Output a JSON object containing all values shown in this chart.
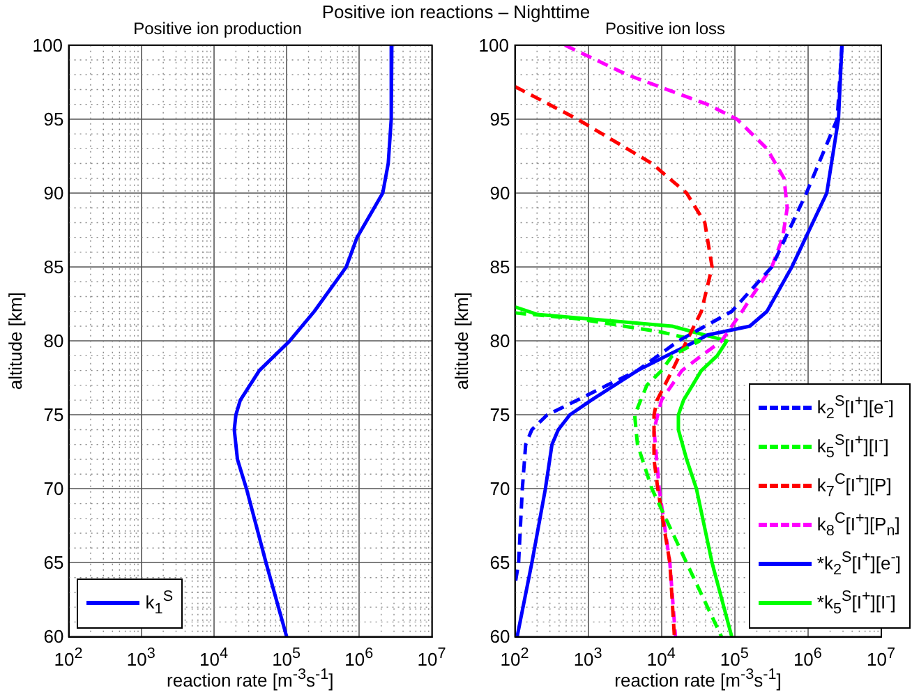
{
  "chart_data": [
    {
      "type": "line",
      "title": "Positive ion production",
      "xlabel": "reaction rate [m$^{-3}$s$^{-1}$]",
      "ylabel": "altitude [km]",
      "log": "x",
      "grid": true,
      "legend": "bottom left",
      "annotations": [
        "Positive ion reactions – Nighttime"
      ],
      "xlim": [
        100,
        10000000
      ],
      "xticks": [
        {
          "value": 100,
          "label": "10$^{2}$"
        },
        {
          "value": 1000,
          "label": "10$^{3}$"
        },
        {
          "value": 10000,
          "label": "10$^{4}$"
        },
        {
          "value": 100000,
          "label": "10$^{5}$"
        },
        {
          "value": 1000000,
          "label": "10$^{6}$"
        },
        {
          "value": 10000000,
          "label": "10$^{7}$"
        }
      ],
      "ylim": [
        60,
        100
      ],
      "yticks": [
        60,
        65,
        70,
        75,
        80,
        85,
        90,
        95,
        100
      ],
      "series": [
        {
          "name": "k$_{1}$$^{S}$",
          "color": "#0000ff",
          "line_style": "solid",
          "x": [
            2800000,
            2750000,
            2500000,
            2100000,
            930000,
            660000,
            240000,
            110000,
            42000,
            23000,
            20000,
            19000,
            21000,
            28000,
            52000,
            100000
          ],
          "values": [
            100,
            95,
            92,
            90,
            87,
            85,
            82,
            80,
            78,
            76,
            75,
            74,
            72,
            70,
            65,
            60
          ]
        }
      ]
    },
    {
      "type": "line",
      "title": "Positive ion loss",
      "xlabel": "reaction rate [m$^{-3}$s$^{-1}$]",
      "ylabel": "altitude [km]",
      "log": "x",
      "grid": true,
      "legend": "bottom right",
      "xlim": [
        100,
        10000000
      ],
      "xticks": [
        {
          "value": 100,
          "label": "10$^{2}$"
        },
        {
          "value": 1000,
          "label": "10$^{3}$"
        },
        {
          "value": 10000,
          "label": "10$^{4}$"
        },
        {
          "value": 100000,
          "label": "10$^{5}$"
        },
        {
          "value": 1000000,
          "label": "10$^{6}$"
        },
        {
          "value": 10000000,
          "label": "10$^{7}$"
        }
      ],
      "ylim": [
        60,
        100
      ],
      "yticks": [
        60,
        65,
        70,
        75,
        80,
        85,
        90,
        95,
        100
      ],
      "series": [
        {
          "name": "k$_{2}$$^{S}$[I$^{+}$][e$^{-}$]",
          "color": "#0000ff",
          "line_style": "dashed",
          "x": [
            2900000,
            2500000,
            950000,
            320000,
            91000,
            17000,
            4700,
            1800,
            710,
            275,
            170,
            140,
            126,
            112,
            100
          ],
          "values": [
            100,
            95,
            90,
            85,
            82,
            80,
            78,
            77,
            76,
            75,
            74,
            73,
            70,
            65,
            63.5
          ]
        },
        {
          "name": "k$_{5}$$^{S}$[I$^{+}$][I$^{-}$]",
          "color": "#00ff00",
          "line_style": "dashed",
          "x": [
            100,
            710,
            10000,
            33000,
            14000,
            10000,
            6300,
            4300,
            4700,
            7400,
            22000,
            66000
          ],
          "values": [
            81.9,
            81.5,
            80.6,
            80,
            79,
            78,
            77,
            75,
            73,
            70,
            65,
            60
          ]
        },
        {
          "name": "k$_{7}$$^{C}$[I$^{+}$][P]",
          "color": "#ff0000",
          "line_style": "dashed",
          "x": [
            100,
            710,
            7400,
            22000,
            39000,
            49000,
            35000,
            22000,
            14000,
            8700,
            7900,
            7900,
            8900,
            13000,
            15000
          ],
          "values": [
            97.2,
            95,
            92,
            90,
            88,
            85,
            82,
            80,
            78,
            76,
            75,
            72,
            70,
            65,
            60
          ]
        },
        {
          "name": "k$_{8}$$^{C}$[I$^{+}$][P$_{n}$]",
          "color": "#ff00ff",
          "line_style": "dashed",
          "x": [
            480,
            3400,
            42000,
            107000,
            275000,
            470000,
            520000,
            450000,
            320000,
            170000,
            126000,
            66000,
            35000,
            19000,
            10000,
            7900,
            9300,
            13000,
            15500
          ],
          "values": [
            100,
            98,
            96,
            95,
            93,
            91,
            89,
            87,
            85,
            83,
            82,
            80,
            79,
            78,
            76,
            74,
            70,
            65,
            60
          ]
        },
        {
          "name": "*k$_{2}$$^{S}$[I$^{+}$][e$^{-}$]",
          "color": "#0000ff",
          "line_style": "solid",
          "x": [
            2900000,
            2600000,
            1800000,
            600000,
            275000,
            160000,
            42000,
            30000,
            11700,
            4700,
            1100,
            560,
            390,
            320,
            260,
            170,
            107
          ],
          "values": [
            100,
            95,
            90,
            85,
            82,
            81,
            80.4,
            80,
            79,
            78,
            76,
            75,
            74,
            73,
            70,
            65,
            60
          ]
        },
        {
          "name": "*k$_{5}$$^{S}$[I$^{+}$][I$^{-}$]",
          "color": "#00ff00",
          "line_style": "solid",
          "x": [
            100,
            200,
            14000,
            78000,
            57500,
            35000,
            20000,
            17000,
            17000,
            22000,
            30000,
            49000,
            91000
          ],
          "values": [
            82.3,
            81.8,
            81,
            80,
            79,
            78,
            76,
            75,
            74,
            72,
            70,
            65,
            60
          ]
        }
      ]
    }
  ]
}
